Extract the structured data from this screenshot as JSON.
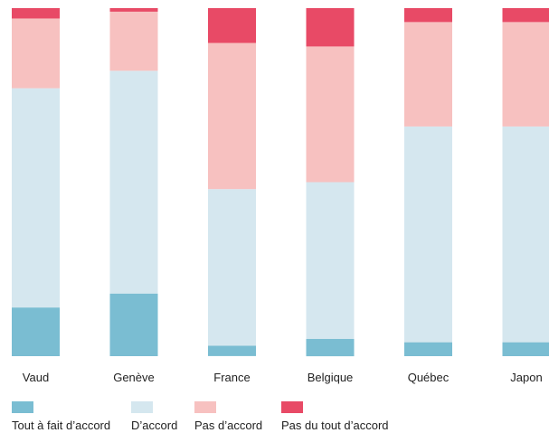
{
  "chart_data": {
    "type": "bar",
    "stacked": true,
    "orientation": "vertical",
    "categories": [
      "Vaud",
      "Genève",
      "France",
      "Belgique",
      "Québec",
      "Japon"
    ],
    "series": [
      {
        "name": "Tout à fait d’accord",
        "color": "#7ABDD2",
        "values": [
          14,
          18,
          3,
          5,
          4,
          4
        ]
      },
      {
        "name": "D’accord",
        "color": "#D5E7EF",
        "values": [
          63,
          64,
          45,
          45,
          62,
          62
        ]
      },
      {
        "name": "Pas d’accord",
        "color": "#F7C1C0",
        "values": [
          20,
          17,
          42,
          39,
          30,
          30
        ]
      },
      {
        "name": "Pas du tout d’accord",
        "color": "#E84A66",
        "values": [
          3,
          1,
          10,
          11,
          4,
          4
        ]
      }
    ],
    "ylim": [
      0,
      100
    ],
    "grid": false,
    "legend_position": "bottom-left"
  }
}
